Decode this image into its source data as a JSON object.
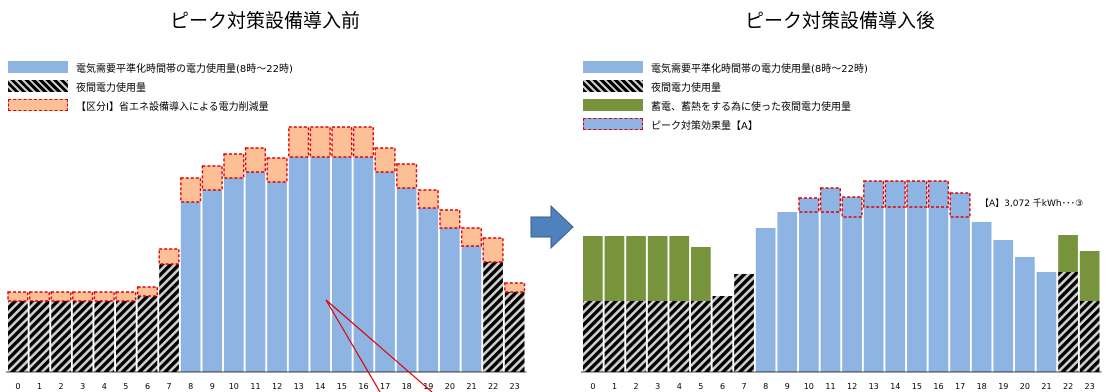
{
  "colors": {
    "blue": "#8eb4e3",
    "hatch_dark": "#000000",
    "hatch_light": "#cfcfcf",
    "peach": "#fcbf96",
    "dash_red": "#e30000",
    "green": "#77933c",
    "arrow": "#4f81bd"
  },
  "left": {
    "title": "ピーク対策設備導入前",
    "legend": [
      {
        "label": "電気需要平準化時間帯の電力使用量(8時～22時)",
        "swatch": "blue"
      },
      {
        "label": "夜間電力使用量",
        "swatch": "hatch"
      },
      {
        "label": "【区分Ⅰ】省エネ設備導入による電力削減量",
        "swatch": "peach"
      }
    ]
  },
  "right": {
    "title": "ピーク対策設備導入後",
    "legend": [
      {
        "label": "電気需要平準化時間帯の電力使用量(8時～22時)",
        "swatch": "blue"
      },
      {
        "label": "夜間電力使用量",
        "swatch": "hatch"
      },
      {
        "label": "蓄電、蓄熱をする為に使った夜間電力使用量",
        "swatch": "green"
      },
      {
        "label": "ピーク対策効果量【A】",
        "swatch": "blue-dash"
      }
    ],
    "annotation": "【A】3,072 千kWh･･･③"
  },
  "arrow_icon": "right-arrow-icon",
  "chart_data": [
    {
      "type": "bar",
      "stacked": true,
      "title": "ピーク対策設備導入前",
      "categories": [
        "0",
        "1",
        "2",
        "3",
        "4",
        "5",
        "6",
        "7",
        "8",
        "9",
        "10",
        "11",
        "12",
        "13",
        "14",
        "15",
        "16",
        "17",
        "18",
        "19",
        "20",
        "21",
        "22",
        "23"
      ],
      "series": [
        {
          "name": "夜間電力使用量",
          "values": [
            71,
            71,
            71,
            71,
            71,
            71,
            76,
            108,
            0,
            0,
            0,
            0,
            0,
            0,
            0,
            0,
            0,
            0,
            0,
            0,
            0,
            0,
            110,
            80
          ]
        },
        {
          "name": "電気需要平準化時間帯の電力使用量(8時～22時)",
          "values": [
            0,
            0,
            0,
            0,
            0,
            0,
            0,
            0,
            170,
            182,
            194,
            200,
            190,
            215,
            215,
            215,
            215,
            200,
            184,
            164,
            144,
            126,
            0,
            0
          ]
        },
        {
          "name": "【区分Ⅰ】省エネ設備導入による電力削減量",
          "values": [
            9,
            9,
            9,
            9,
            9,
            9,
            9,
            15,
            24,
            24,
            24,
            24,
            24,
            30,
            30,
            30,
            30,
            24,
            24,
            18,
            18,
            18,
            24,
            9
          ]
        }
      ],
      "ylim": [
        0,
        240
      ]
    },
    {
      "type": "bar",
      "stacked": true,
      "title": "ピーク対策設備導入後",
      "categories": [
        "0",
        "1",
        "2",
        "3",
        "4",
        "5",
        "6",
        "7",
        "8",
        "9",
        "10",
        "11",
        "12",
        "13",
        "14",
        "15",
        "16",
        "17",
        "18",
        "19",
        "20",
        "21",
        "22",
        "23"
      ],
      "series": [
        {
          "name": "夜間電力使用量",
          "values": [
            71,
            71,
            71,
            71,
            71,
            71,
            76,
            98,
            0,
            0,
            0,
            0,
            0,
            0,
            0,
            0,
            0,
            0,
            0,
            0,
            0,
            0,
            100,
            71
          ]
        },
        {
          "name": "電気需要平準化時間帯の電力使用量(8時～22時)",
          "values": [
            0,
            0,
            0,
            0,
            0,
            0,
            0,
            0,
            144,
            160,
            160,
            160,
            155,
            165,
            165,
            165,
            165,
            155,
            150,
            132,
            115,
            100,
            0,
            0
          ]
        },
        {
          "name": "蓄電、蓄熱をする為に使った夜間電力使用量",
          "values": [
            65,
            65,
            65,
            65,
            65,
            54,
            0,
            0,
            0,
            0,
            0,
            0,
            0,
            0,
            0,
            0,
            0,
            0,
            0,
            0,
            0,
            0,
            37,
            50
          ]
        },
        {
          "name": "ピーク対策効果量【A】",
          "values": [
            0,
            0,
            0,
            0,
            0,
            0,
            0,
            0,
            0,
            0,
            14,
            24,
            20,
            26,
            26,
            26,
            26,
            24,
            0,
            0,
            0,
            0,
            0,
            0
          ]
        }
      ],
      "annotations": [
        "【A】3,072 千kWh･･･③"
      ],
      "ylim": [
        0,
        240
      ]
    }
  ]
}
